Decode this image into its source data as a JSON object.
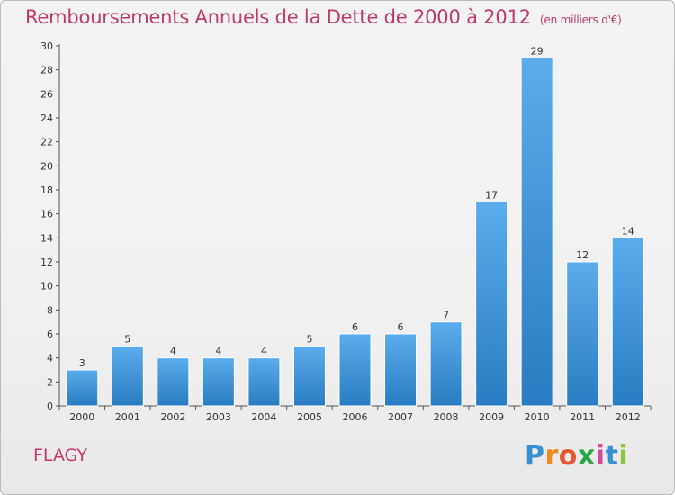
{
  "title": "Remboursements Annuels de la Dette de 2000 à 2012",
  "unit": "(en milliers d'€)",
  "commune": "FLAGY",
  "logo": {
    "letters": [
      "P",
      "r",
      "o",
      "x",
      "i",
      "t",
      "i"
    ],
    "colors": [
      "#3a8fd1",
      "#f08a1c",
      "#e4572e",
      "#2aa54a",
      "#d64a9a",
      "#3a8fd1",
      "#8cc63e"
    ]
  },
  "colors": {
    "title": "#c0396b",
    "bar_light": "#5aacec",
    "bar_dark": "#2a7cc2",
    "axis": "#555555"
  },
  "chart_data": {
    "type": "bar",
    "title": "Remboursements Annuels de la Dette de 2000 à 2012",
    "subtitle": "(en milliers d'€)",
    "xlabel": "",
    "ylabel": "",
    "categories": [
      "2000",
      "2001",
      "2002",
      "2003",
      "2004",
      "2005",
      "2006",
      "2007",
      "2008",
      "2009",
      "2010",
      "2011",
      "2012"
    ],
    "values": [
      3,
      5,
      4,
      4,
      4,
      5,
      6,
      6,
      7,
      17,
      29,
      12,
      14
    ],
    "ylim": [
      0,
      30
    ],
    "yticks": [
      0,
      2,
      4,
      6,
      8,
      10,
      12,
      14,
      16,
      18,
      20,
      22,
      24,
      26,
      28,
      30
    ],
    "grid": false,
    "legend": "none"
  }
}
